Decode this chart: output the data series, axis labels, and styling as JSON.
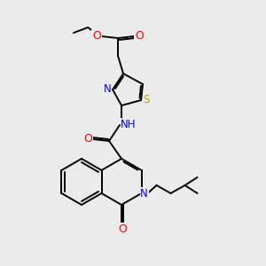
{
  "bg_color": "#ebebeb",
  "atom_colors": {
    "C": "#000000",
    "N": "#0000ff",
    "O": "#ff0000",
    "S": "#b8a000",
    "H": "#7a9090"
  },
  "line_color": "#000000",
  "line_width": 1.4,
  "font_size": 8.5,
  "figsize": [
    3.0,
    3.0
  ],
  "dpi": 100
}
